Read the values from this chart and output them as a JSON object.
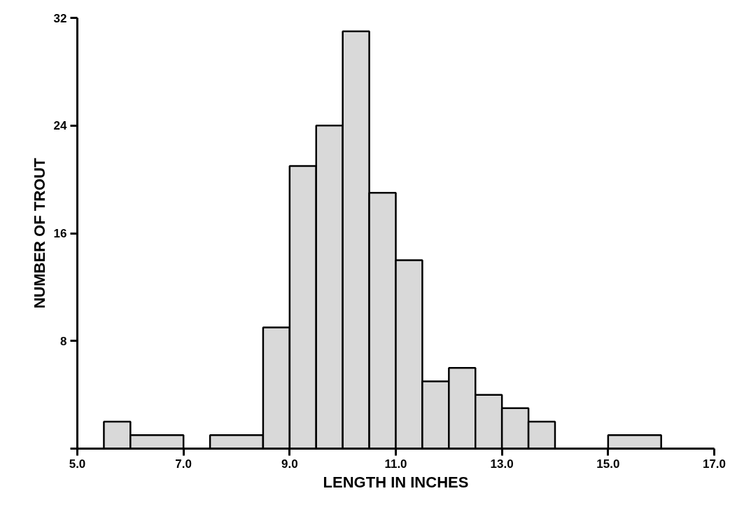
{
  "chart_data": {
    "type": "histogram",
    "xlabel": "LENGTH IN INCHES",
    "ylabel": "NUMBER OF TROUT",
    "bins": [
      5.5,
      6.0,
      7.0,
      7.5,
      8.5,
      9.0,
      9.5,
      10.0,
      10.5,
      11.0,
      11.5,
      12.0,
      12.5,
      13.0,
      13.5,
      14.0,
      15.0,
      16.0
    ],
    "values": [
      2,
      1,
      0,
      1,
      9,
      21,
      24,
      31,
      19,
      14,
      5,
      6,
      4,
      3,
      2,
      0,
      1
    ],
    "color": "#d9d9d9",
    "xlim": [
      5.0,
      17.0
    ],
    "xticks": [
      {
        "value": 5.0,
        "label": "5.0"
      },
      {
        "value": 7.0,
        "label": "7.0"
      },
      {
        "value": 9.0,
        "label": "9.0"
      },
      {
        "value": 11.0,
        "label": "11.0"
      },
      {
        "value": 13.0,
        "label": "13.0"
      },
      {
        "value": 15.0,
        "label": "15.0"
      },
      {
        "value": 17.0,
        "label": "17.0"
      }
    ],
    "ylim": [
      0,
      32
    ],
    "yticks": [
      {
        "value": 0,
        "label": null
      },
      8,
      16,
      24,
      32
    ],
    "grid": false
  }
}
